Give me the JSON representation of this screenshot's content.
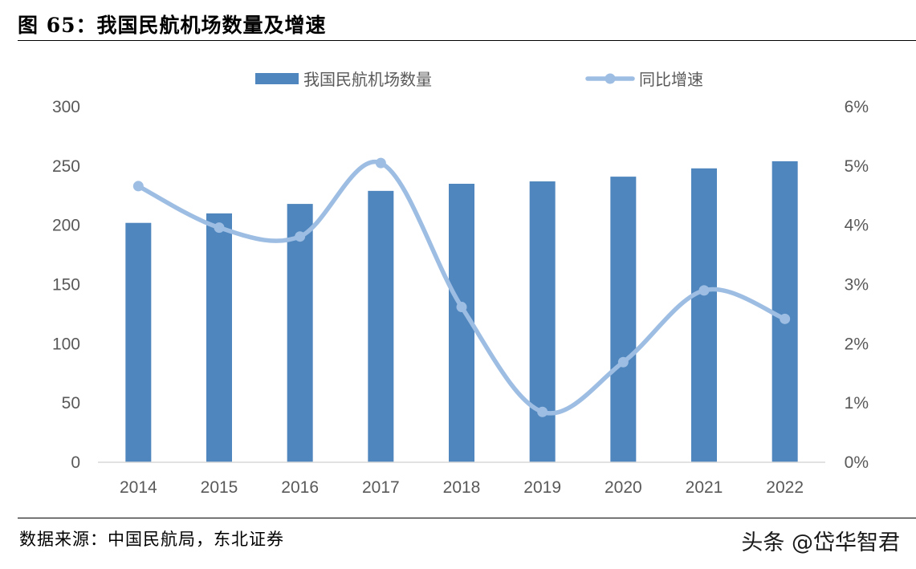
{
  "figure": {
    "title": "图 65：我国民航机场数量及增速",
    "source": "数据来源：中国民航局，东北证券",
    "watermark": "头条 @岱华智君"
  },
  "chart_data": {
    "type": "bar",
    "title": "",
    "xlabel": "",
    "ylabel": "",
    "categories": [
      "2014",
      "2015",
      "2016",
      "2017",
      "2018",
      "2019",
      "2020",
      "2021",
      "2022"
    ],
    "series": [
      {
        "name": "我国民航机场数量",
        "type": "bar",
        "axis": "left",
        "color": "#4F86BD",
        "values": [
          202,
          210,
          218,
          229,
          235,
          237,
          241,
          248,
          254
        ]
      },
      {
        "name": "同比增速",
        "type": "line",
        "axis": "right",
        "color": "#9DBDE3",
        "values": [
          4.66,
          3.96,
          3.81,
          5.05,
          2.62,
          0.85,
          1.69,
          2.9,
          2.42
        ]
      }
    ],
    "ylim": [
      0,
      300
    ],
    "yticks": [
      0,
      50,
      100,
      150,
      200,
      250,
      300
    ],
    "y2lim": [
      0,
      6
    ],
    "y2ticks": [
      "0%",
      "1%",
      "2%",
      "3%",
      "4%",
      "5%",
      "6%"
    ],
    "legend_position": "top-center",
    "grid": false
  }
}
